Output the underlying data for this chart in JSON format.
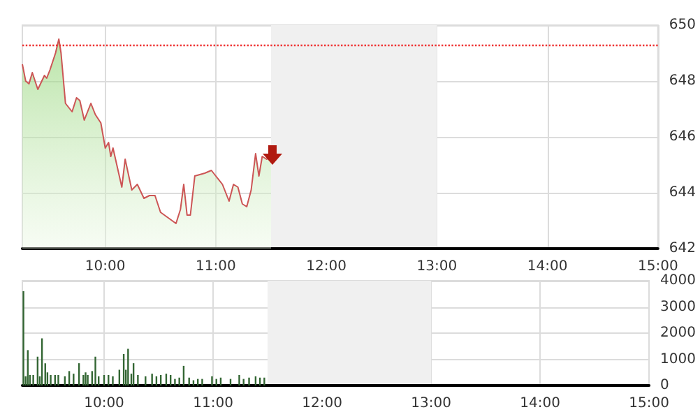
{
  "chart_data": [
    {
      "type": "area",
      "x": [
        9.25,
        9.28,
        9.31,
        9.34,
        9.39,
        9.45,
        9.47,
        9.5,
        9.55,
        9.58,
        9.6,
        9.64,
        9.7,
        9.74,
        9.77,
        9.81,
        9.87,
        9.91,
        9.96,
        10.0,
        10.03,
        10.05,
        10.07,
        10.11,
        10.15,
        10.18,
        10.24,
        10.29,
        10.35,
        10.4,
        10.45,
        10.5,
        10.57,
        10.64,
        10.68,
        10.71,
        10.74,
        10.77,
        10.81,
        10.9,
        10.96,
        11.0,
        11.06,
        11.12,
        11.16,
        11.2,
        11.24,
        11.28,
        11.32,
        11.36,
        11.39,
        11.42,
        11.46,
        11.5
      ],
      "series": [
        {
          "color": "#cc5555",
          "values": [
            648.6,
            648.0,
            647.9,
            648.3,
            647.7,
            648.2,
            648.1,
            648.4,
            649.0,
            649.5,
            649.0,
            647.2,
            646.9,
            647.4,
            647.3,
            646.6,
            647.2,
            646.8,
            646.5,
            645.6,
            645.8,
            645.3,
            645.6,
            644.9,
            644.2,
            645.2,
            644.1,
            644.3,
            643.8,
            643.9,
            643.9,
            643.3,
            643.1,
            642.9,
            643.4,
            644.3,
            643.2,
            643.2,
            644.6,
            644.7,
            644.8,
            644.6,
            644.3,
            643.7,
            644.3,
            644.2,
            643.6,
            643.5,
            644.1,
            645.4,
            644.6,
            645.3,
            645.2,
            645.3
          ]
        }
      ],
      "xlim": [
        9.25,
        15
      ],
      "xticks": [
        {
          "value": 10,
          "label": "10:00"
        },
        {
          "value": 11,
          "label": "11:00"
        },
        {
          "value": 12,
          "label": "12:00"
        },
        {
          "value": 13,
          "label": "13:00"
        },
        {
          "value": 14,
          "label": "14:00"
        },
        {
          "value": 15,
          "label": "15:00"
        }
      ],
      "ylim": [
        642,
        650
      ],
      "yticks": [
        642,
        644,
        646,
        648,
        650
      ],
      "grid": true,
      "marker": "none",
      "ref_lines": [
        {
          "axis": "y",
          "value": 649.3,
          "color": "#ee3333",
          "line_style": "dotted"
        }
      ],
      "bands": [
        {
          "axis": "x",
          "from": 11.5,
          "to": 13,
          "color": "#f0f0f0"
        }
      ]
    },
    {
      "type": "bar",
      "x": [
        9.26,
        9.28,
        9.3,
        9.32,
        9.35,
        9.39,
        9.41,
        9.43,
        9.46,
        9.48,
        9.51,
        9.55,
        9.58,
        9.64,
        9.68,
        9.72,
        9.77,
        9.81,
        9.83,
        9.85,
        9.89,
        9.92,
        9.95,
        10.0,
        10.04,
        10.08,
        10.14,
        10.18,
        10.2,
        10.22,
        10.25,
        10.27,
        10.31,
        10.38,
        10.44,
        10.48,
        10.52,
        10.57,
        10.61,
        10.65,
        10.69,
        10.73,
        10.78,
        10.82,
        10.86,
        10.9,
        10.99,
        11.03,
        11.07,
        11.16,
        11.24,
        11.28,
        11.33,
        11.39,
        11.43,
        11.47
      ],
      "series": [
        {
          "color": "#336633",
          "values": [
            3600,
            350,
            1350,
            400,
            400,
            1100,
            350,
            1800,
            850,
            500,
            400,
            400,
            400,
            350,
            550,
            450,
            850,
            400,
            500,
            400,
            550,
            1100,
            350,
            400,
            400,
            350,
            600,
            1200,
            600,
            1400,
            450,
            850,
            400,
            350,
            450,
            350,
            400,
            450,
            400,
            250,
            300,
            750,
            300,
            200,
            250,
            250,
            350,
            250,
            300,
            250,
            400,
            250,
            300,
            350,
            300,
            300
          ]
        }
      ],
      "xlim": [
        9.25,
        15
      ],
      "xticks": [
        {
          "value": 10,
          "label": "10:00"
        },
        {
          "value": 11,
          "label": "11:00"
        },
        {
          "value": 12,
          "label": "12:00"
        },
        {
          "value": 13,
          "label": "13:00"
        },
        {
          "value": 14,
          "label": "14:00"
        },
        {
          "value": 15,
          "label": "15:00"
        }
      ],
      "ylim": [
        0,
        4000
      ],
      "yticks": [
        0,
        1000,
        2000,
        3000,
        4000
      ],
      "grid": true,
      "bands": [
        {
          "axis": "x",
          "from": 11.5,
          "to": 13,
          "color": "#f0f0f0"
        }
      ]
    }
  ]
}
